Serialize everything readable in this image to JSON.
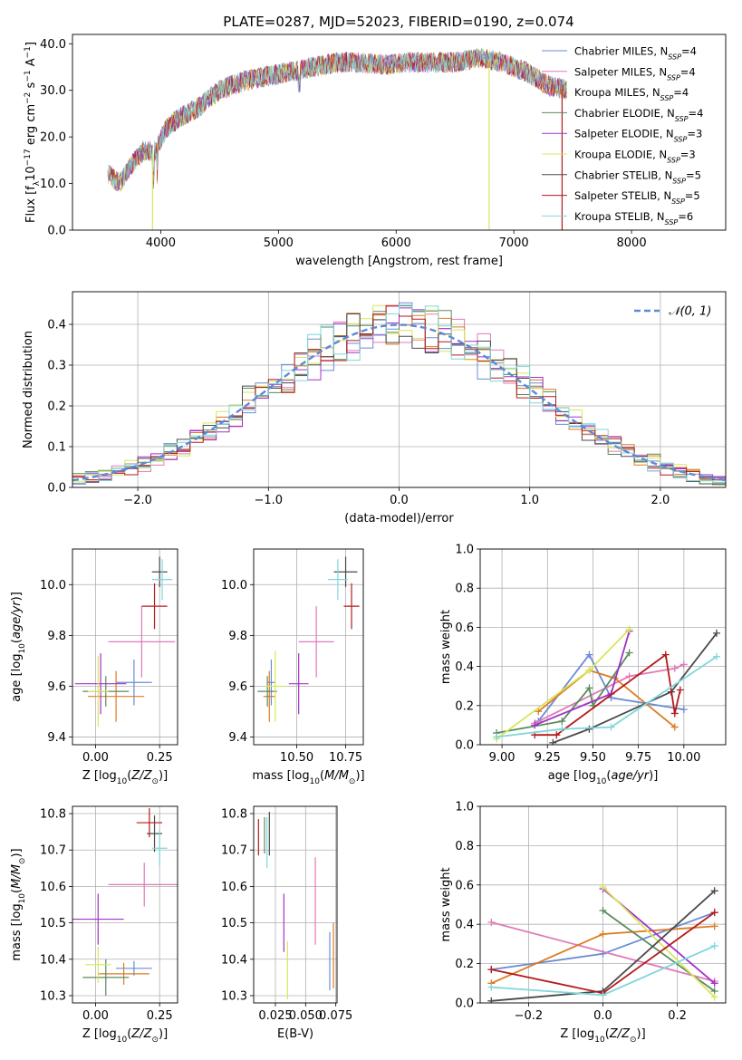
{
  "figure_title": "PLATE=0287, MJD=52023, FIBERID=0190, z=0.074",
  "colors": {
    "Chabrier MILES": "#6a8bd6",
    "Salpeter MILES": "#e07ab8",
    "Kroupa MILES": "#de7b24",
    "Chabrier ELODIE": "#5a8a5e",
    "Salpeter ELODIE": "#a232c8",
    "Kroupa ELODIE": "#d9e65a",
    "Chabrier STELIB": "#4a4a4a",
    "Salpeter STELIB": "#b41a1a",
    "Kroupa STELIB": "#7fd6dc",
    "gaussian": "#5b8ad6"
  },
  "chart_data": [
    {
      "id": "spectrum",
      "type": "line",
      "xlabel": "wavelength [Angstrom, rest frame]",
      "ylabel": "Flux [f_λ10^-17 erg cm^-2 s^-1 A^-1]",
      "xlim": [
        3250,
        8800
      ],
      "ylim": [
        0,
        42
      ],
      "xticks": [
        4000,
        5000,
        6000,
        7000,
        8000
      ],
      "yticks": [
        0,
        10,
        20,
        30,
        40
      ],
      "legend_placement": "right",
      "legend": [
        {
          "label": "Chabrier MILES, N_SSP=4",
          "base": "Chabrier MILES, N",
          "sub": "SSP",
          "tail": "=4",
          "model": "Chabrier MILES"
        },
        {
          "label": "Salpeter MILES, N_SSP=4",
          "base": "Salpeter MILES, N",
          "sub": "SSP",
          "tail": "=4",
          "model": "Salpeter MILES"
        },
        {
          "label": "Kroupa MILES, N_SSP=4",
          "base": "Kroupa MILES, N",
          "sub": "SSP",
          "tail": "=4",
          "model": "Kroupa MILES"
        },
        {
          "label": "Chabrier ELODIE, N_SSP=4",
          "base": "Chabrier ELODIE, N",
          "sub": "SSP",
          "tail": "=4",
          "model": "Chabrier ELODIE"
        },
        {
          "label": "Salpeter ELODIE, N_SSP=3",
          "base": "Salpeter ELODIE, N",
          "sub": "SSP",
          "tail": "=3",
          "model": "Salpeter ELODIE"
        },
        {
          "label": "Kroupa ELODIE, N_SSP=3",
          "base": "Kroupa ELODIE, N",
          "sub": "SSP",
          "tail": "=3",
          "model": "Kroupa ELODIE"
        },
        {
          "label": "Chabrier STELIB, N_SSP=5",
          "base": "Chabrier STELIB, N",
          "sub": "SSP",
          "tail": "=5",
          "model": "Chabrier STELIB"
        },
        {
          "label": "Salpeter STELIB, N_SSP=5",
          "base": "Salpeter STELIB, N",
          "sub": "SSP",
          "tail": "=5",
          "model": "Salpeter STELIB"
        },
        {
          "label": "Kroupa STELIB, N_SSP=6",
          "base": "Kroupa STELIB, N",
          "sub": "SSP",
          "tail": "=6",
          "model": "Kroupa STELIB"
        }
      ],
      "continuum": {
        "x": [
          3550,
          3650,
          3750,
          3850,
          3950,
          4050,
          4150,
          4300,
          4500,
          4700,
          4900,
          5100,
          5300,
          5500,
          5700,
          5900,
          6100,
          6300,
          6500,
          6700,
          6900,
          7100,
          7300,
          7450
        ],
        "y": [
          12,
          10,
          14,
          17,
          17,
          22,
          24,
          26,
          30,
          32,
          33,
          34,
          35,
          36,
          36,
          35.5,
          36,
          36,
          36,
          37,
          36,
          34,
          31,
          30
        ]
      },
      "spikes": [
        {
          "x": 3930,
          "y": 0,
          "model": "Kroupa ELODIE"
        },
        {
          "x": 6790,
          "y": 0,
          "model": "Kroupa ELODIE"
        },
        {
          "x": 7410,
          "y": 0,
          "model": "Salpeter STELIB"
        }
      ]
    },
    {
      "id": "residual-histogram",
      "type": "bar",
      "xlabel": "(data-model)/error",
      "ylabel": "Normed distribution",
      "xlim": [
        -2.5,
        2.5
      ],
      "ylim": [
        0,
        0.48
      ],
      "xticks": [
        -2,
        -1,
        0,
        1,
        2
      ],
      "yticks": [
        0.0,
        0.1,
        0.2,
        0.3,
        0.4
      ],
      "grid": true,
      "bin_width": 0.1,
      "legend_placement": "top-right",
      "legend_label": "N(0,1)"
    },
    {
      "id": "age-vs-Z",
      "type": "scatter",
      "xlabel": "Z [log10(Z/Z⊙)]",
      "ylabel": "age  [log10(age/yr)]",
      "xlim": [
        -0.09,
        0.32
      ],
      "ylim": [
        9.37,
        10.14
      ],
      "xticks": [
        0.0,
        0.25
      ],
      "yticks": [
        9.4,
        9.6,
        9.8,
        10.0
      ],
      "grid": true,
      "points": [
        {
          "model": "Chabrier MILES",
          "x": 0.15,
          "xerr": 0.07,
          "y": 9.615,
          "yerr": 0.09
        },
        {
          "model": "Salpeter MILES",
          "x": 0.18,
          "xerr": 0.13,
          "y": 9.775,
          "yerr": 0.14
        },
        {
          "model": "Kroupa MILES",
          "x": 0.08,
          "xerr": 0.11,
          "y": 9.56,
          "yerr": 0.1
        },
        {
          "model": "Chabrier ELODIE",
          "x": 0.04,
          "xerr": 0.09,
          "y": 9.58,
          "yerr": 0.06
        },
        {
          "model": "Salpeter ELODIE",
          "x": 0.02,
          "xerr": 0.1,
          "y": 9.61,
          "yerr": 0.12
        },
        {
          "model": "Kroupa ELODIE",
          "x": 0.01,
          "xerr": 0.04,
          "y": 9.58,
          "yerr": 0.14
        },
        {
          "model": "Chabrier STELIB",
          "x": 0.25,
          "xerr": 0.03,
          "y": 10.05,
          "yerr": 0.06
        },
        {
          "model": "Salpeter STELIB",
          "x": 0.23,
          "xerr": 0.05,
          "y": 9.915,
          "yerr": 0.09
        },
        {
          "model": "Kroupa STELIB",
          "x": 0.26,
          "xerr": 0.04,
          "y": 10.02,
          "yerr": 0.08
        }
      ]
    },
    {
      "id": "age-vs-mass",
      "type": "scatter",
      "xlabel": "mass [log10(M/M⊙)]",
      "ylabel": "",
      "xlim": [
        10.28,
        10.84
      ],
      "ylim": [
        9.37,
        10.14
      ],
      "xticks": [
        10.5,
        10.75
      ],
      "yticks": [
        9.4,
        9.6,
        9.8,
        10.0
      ],
      "grid": true,
      "points": [
        {
          "model": "Chabrier MILES",
          "x": 10.37,
          "xerr": 0.02,
          "y": 9.615,
          "yerr": 0.09
        },
        {
          "model": "Salpeter MILES",
          "x": 10.6,
          "xerr": 0.09,
          "y": 9.775,
          "yerr": 0.14
        },
        {
          "model": "Kroupa MILES",
          "x": 10.36,
          "xerr": 0.03,
          "y": 9.56,
          "yerr": 0.1
        },
        {
          "model": "Chabrier ELODIE",
          "x": 10.35,
          "xerr": 0.05,
          "y": 9.58,
          "yerr": 0.06
        },
        {
          "model": "Salpeter ELODIE",
          "x": 10.51,
          "xerr": 0.05,
          "y": 9.61,
          "yerr": 0.12
        },
        {
          "model": "Kroupa ELODIE",
          "x": 10.39,
          "xerr": 0.05,
          "y": 9.6,
          "yerr": 0.14
        },
        {
          "model": "Chabrier STELIB",
          "x": 10.75,
          "xerr": 0.06,
          "y": 10.05,
          "yerr": 0.06
        },
        {
          "model": "Salpeter STELIB",
          "x": 10.78,
          "xerr": 0.04,
          "y": 9.915,
          "yerr": 0.09
        },
        {
          "model": "Kroupa STELIB",
          "x": 10.71,
          "xerr": 0.05,
          "y": 10.02,
          "yerr": 0.08
        }
      ]
    },
    {
      "id": "mass-weight-vs-age",
      "type": "line",
      "xlabel": "age  [log10(age/yr)]",
      "ylabel": "mass weight",
      "xlim": [
        8.88,
        10.23
      ],
      "ylim": [
        0,
        1
      ],
      "xticks": [
        9.0,
        9.25,
        9.5,
        9.75,
        10.0
      ],
      "yticks": [
        0.0,
        0.2,
        0.4,
        0.6,
        0.8,
        1.0
      ],
      "grid": true,
      "series": [
        {
          "model": "Chabrier MILES",
          "x": [
            9.2,
            9.48,
            9.6,
            10.0
          ],
          "y": [
            0.12,
            0.46,
            0.24,
            0.18
          ]
        },
        {
          "model": "Salpeter MILES",
          "x": [
            9.18,
            9.7,
            9.95,
            10.0
          ],
          "y": [
            0.11,
            0.35,
            0.39,
            0.41
          ]
        },
        {
          "model": "Kroupa MILES",
          "x": [
            9.2,
            9.48,
            9.62,
            9.95
          ],
          "y": [
            0.17,
            0.38,
            0.34,
            0.09
          ]
        },
        {
          "model": "Chabrier ELODIE",
          "x": [
            8.97,
            9.33,
            9.48,
            9.5,
            9.7
          ],
          "y": [
            0.06,
            0.12,
            0.29,
            0.2,
            0.47
          ]
        },
        {
          "model": "Salpeter ELODIE",
          "x": [
            9.18,
            9.6,
            9.7
          ],
          "y": [
            0.1,
            0.26,
            0.58
          ]
        },
        {
          "model": "Kroupa ELODIE",
          "x": [
            8.97,
            9.48,
            9.7
          ],
          "y": [
            0.03,
            0.38,
            0.59
          ]
        },
        {
          "model": "Chabrier STELIB",
          "x": [
            9.28,
            9.48,
            9.93,
            10.18
          ],
          "y": [
            0.01,
            0.08,
            0.27,
            0.57
          ]
        },
        {
          "model": "Salpeter STELIB",
          "x": [
            9.18,
            9.3,
            9.9,
            9.95,
            9.98
          ],
          "y": [
            0.05,
            0.05,
            0.46,
            0.16,
            0.28
          ]
        },
        {
          "model": "Kroupa STELIB",
          "x": [
            8.97,
            9.33,
            9.6,
            10.18
          ],
          "y": [
            0.04,
            0.08,
            0.09,
            0.45
          ]
        }
      ]
    },
    {
      "id": "mass-vs-Z",
      "type": "scatter",
      "xlabel": "Z [log10(Z/Z⊙)]",
      "ylabel": "mass [log10(M/M⊙)]",
      "xlim": [
        -0.09,
        0.32
      ],
      "ylim": [
        10.28,
        10.82
      ],
      "xticks": [
        0.0,
        0.25
      ],
      "yticks": [
        10.3,
        10.4,
        10.5,
        10.6,
        10.7,
        10.8
      ],
      "grid": true,
      "points": [
        {
          "model": "Chabrier MILES",
          "x": 0.15,
          "xerr": 0.07,
          "y": 10.375,
          "yerr": 0.02
        },
        {
          "model": "Salpeter MILES",
          "x": 0.19,
          "xerr": 0.14,
          "y": 10.605,
          "yerr": 0.06
        },
        {
          "model": "Kroupa MILES",
          "x": 0.11,
          "xerr": 0.1,
          "y": 10.36,
          "yerr": 0.03
        },
        {
          "model": "Chabrier ELODIE",
          "x": 0.04,
          "xerr": 0.09,
          "y": 10.35,
          "yerr": 0.05
        },
        {
          "model": "Salpeter ELODIE",
          "x": 0.01,
          "xerr": 0.1,
          "y": 10.51,
          "yerr": 0.07
        },
        {
          "model": "Kroupa ELODIE",
          "x": 0.01,
          "xerr": 0.05,
          "y": 10.385,
          "yerr": 0.05
        },
        {
          "model": "Chabrier STELIB",
          "x": 0.23,
          "xerr": 0.03,
          "y": 10.745,
          "yerr": 0.05
        },
        {
          "model": "Salpeter STELIB",
          "x": 0.21,
          "xerr": 0.05,
          "y": 10.775,
          "yerr": 0.04
        },
        {
          "model": "Kroupa STELIB",
          "x": 0.25,
          "xerr": 0.03,
          "y": 10.705,
          "yerr": 0.05
        }
      ]
    },
    {
      "id": "mass-vs-ebv",
      "type": "scatter",
      "xlabel": "E(B-V)",
      "ylabel": "",
      "xlim": [
        0.007,
        0.076
      ],
      "ylim": [
        10.28,
        10.82
      ],
      "xticks": [
        0.025,
        0.05,
        0.075
      ],
      "yticks": [
        10.3,
        10.4,
        10.5,
        10.6,
        10.7,
        10.8
      ],
      "grid": true,
      "points": [
        {
          "model": "Chabrier MILES",
          "x": 0.07,
          "xerr": 0,
          "y": 10.395,
          "yerr": 0.08
        },
        {
          "model": "Salpeter MILES",
          "x": 0.058,
          "xerr": 0,
          "y": 10.56,
          "yerr": 0.12
        },
        {
          "model": "Kroupa MILES",
          "x": 0.073,
          "xerr": 0,
          "y": 10.41,
          "yerr": 0.09
        },
        {
          "model": "Chabrier ELODIE",
          "x": 0.016,
          "xerr": 0,
          "y": 10.74,
          "yerr": 0.05
        },
        {
          "model": "Salpeter ELODIE",
          "x": 0.032,
          "xerr": 0,
          "y": 10.5,
          "yerr": 0.08
        },
        {
          "model": "Kroupa ELODIE",
          "x": 0.035,
          "xerr": 0,
          "y": 10.37,
          "yerr": 0.08
        },
        {
          "model": "Chabrier STELIB",
          "x": 0.02,
          "xerr": 0,
          "y": 10.745,
          "yerr": 0.06
        },
        {
          "model": "Salpeter STELIB",
          "x": 0.011,
          "xerr": 0,
          "y": 10.735,
          "yerr": 0.05
        },
        {
          "model": "Kroupa STELIB",
          "x": 0.018,
          "xerr": 0,
          "y": 10.72,
          "yerr": 0.07
        }
      ]
    },
    {
      "id": "mass-weight-vs-Z",
      "type": "line",
      "xlabel": "Z [log10(Z/Z⊙)]",
      "ylabel": "mass weight",
      "xlim": [
        -0.33,
        0.33
      ],
      "ylim": [
        0,
        1
      ],
      "xticks": [
        -0.2,
        0.0,
        0.2
      ],
      "yticks": [
        0.0,
        0.2,
        0.4,
        0.6,
        0.8,
        1.0
      ],
      "grid": true,
      "series": [
        {
          "model": "Chabrier MILES",
          "x": [
            -0.3,
            0.0,
            0.3
          ],
          "y": [
            0.17,
            0.25,
            0.46
          ]
        },
        {
          "model": "Salpeter MILES",
          "x": [
            -0.3,
            0.3
          ],
          "y": [
            0.41,
            0.11
          ]
        },
        {
          "model": "Kroupa MILES",
          "x": [
            -0.3,
            0.0,
            0.3
          ],
          "y": [
            0.1,
            0.35,
            0.39
          ]
        },
        {
          "model": "Chabrier ELODIE",
          "x": [
            0.0,
            0.3
          ],
          "y": [
            0.47,
            0.06
          ]
        },
        {
          "model": "Salpeter ELODIE",
          "x": [
            0.0,
            0.3
          ],
          "y": [
            0.58,
            0.1
          ]
        },
        {
          "model": "Kroupa ELODIE",
          "x": [
            0.0,
            0.3
          ],
          "y": [
            0.59,
            0.03
          ]
        },
        {
          "model": "Chabrier STELIB",
          "x": [
            -0.3,
            0.0,
            0.3
          ],
          "y": [
            0.01,
            0.06,
            0.57
          ]
        },
        {
          "model": "Salpeter STELIB",
          "x": [
            -0.3,
            0.0,
            0.3
          ],
          "y": [
            0.17,
            0.05,
            0.46
          ]
        },
        {
          "model": "Kroupa STELIB",
          "x": [
            -0.3,
            0.0,
            0.3
          ],
          "y": [
            0.08,
            0.04,
            0.29
          ]
        }
      ]
    }
  ]
}
